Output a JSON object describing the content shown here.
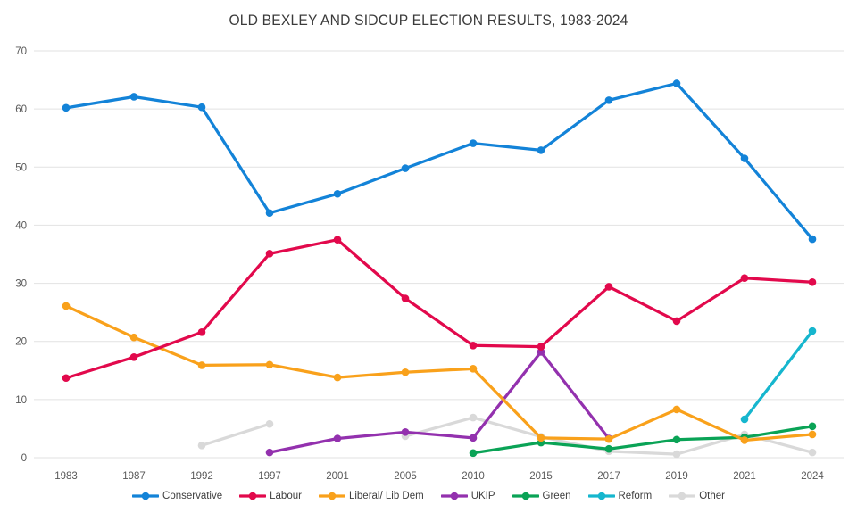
{
  "chart_data": {
    "type": "line",
    "title": "OLD BEXLEY AND SIDCUP ELECTION RESULTS, 1983-2024",
    "xlabel": "",
    "ylabel": "",
    "ylim": [
      0,
      70
    ],
    "ytick_interval": 10,
    "yticks": [
      0,
      10,
      20,
      30,
      40,
      50,
      60,
      70
    ],
    "grid": true,
    "legend_position": "bottom",
    "categories": [
      "1983",
      "1987",
      "1992",
      "1997",
      "2001",
      "2005",
      "2010",
      "2015",
      "2017",
      "2019",
      "2021",
      "2024"
    ],
    "series": [
      {
        "name": "Conservative",
        "color": "#1383d8",
        "values": [
          60.2,
          62.1,
          60.3,
          42.1,
          45.4,
          49.8,
          54.1,
          52.9,
          61.5,
          64.4,
          51.5,
          37.6
        ]
      },
      {
        "name": "Labour",
        "color": "#e2094c",
        "values": [
          13.7,
          17.3,
          21.6,
          35.1,
          37.5,
          27.4,
          19.3,
          19.1,
          29.4,
          23.5,
          30.9,
          30.2
        ]
      },
      {
        "name": "Liberal/ Lib Dem",
        "color": "#f9a11b",
        "values": [
          26.1,
          20.7,
          15.9,
          16.0,
          13.8,
          14.7,
          15.3,
          3.4,
          3.2,
          8.3,
          3.0,
          4.0
        ]
      },
      {
        "name": "UKIP",
        "color": "#9331ae",
        "values": [
          null,
          null,
          null,
          0.9,
          3.3,
          4.4,
          3.4,
          18.2,
          3.3,
          null,
          null,
          null
        ]
      },
      {
        "name": "Green",
        "color": "#0aa356",
        "values": [
          null,
          null,
          null,
          null,
          null,
          null,
          0.8,
          2.6,
          1.5,
          3.1,
          3.5,
          5.4
        ]
      },
      {
        "name": "Reform",
        "color": "#16b6ce",
        "values": [
          null,
          null,
          null,
          null,
          null,
          null,
          null,
          null,
          null,
          null,
          6.6,
          21.8
        ]
      },
      {
        "name": "Other",
        "color": "#d9d9d9",
        "values": [
          null,
          null,
          2.1,
          5.8,
          null,
          3.7,
          6.9,
          3.6,
          1.1,
          0.6,
          4.0,
          0.9
        ]
      }
    ]
  },
  "colors": {
    "background": "#ffffff",
    "gridline": "#e2e2e2",
    "axis_label": "#595959",
    "title": "#3b3b3b",
    "legend_text": "#3f3f3f"
  }
}
